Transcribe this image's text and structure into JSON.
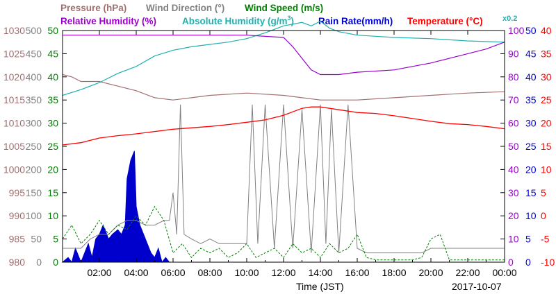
{
  "chart_data": {
    "type": "line",
    "date_label": "2017-10-07",
    "xlabel": "Time (JST)",
    "x_ticks": [
      "02:00",
      "04:00",
      "06:00",
      "08:00",
      "10:00",
      "12:00",
      "14:00",
      "16:00",
      "18:00",
      "20:00",
      "22:00",
      "00:00"
    ],
    "xlim_hours": [
      0,
      24
    ],
    "legend": {
      "pressure": "Pressure (hPa)",
      "wind_direction": "Wind Direction (°)",
      "wind_speed": "Wind Speed (m/s)",
      "relative_humidity": "Relative Humidity (%)",
      "absolute_humidity_prefix": "Absolute Humidity (g/m",
      "absolute_humidity_sup": "3",
      "absolute_humidity_suffix": ")",
      "rain_rate": "Rain Rate(mm/h)",
      "temperature": "Temperature (°C)",
      "multiplier": "x0.2"
    },
    "colors": {
      "pressure": "#a07070",
      "wind_direction": "#808080",
      "wind_speed": "#008000",
      "relative_humidity": "#9900cc",
      "absolute_humidity": "#20b0b0",
      "rain_rate": "#0000cc",
      "temperature": "#ff0000",
      "axis": "#000000"
    },
    "axes": {
      "pressure": {
        "ticks": [
          "980",
          "985",
          "990",
          "995",
          "1000",
          "1005",
          "1010",
          "1015",
          "1020",
          "1025",
          "1030"
        ],
        "ylim": [
          980,
          1030
        ]
      },
      "wind_direction": {
        "ticks": [
          "0",
          "50",
          "100",
          "150",
          "200",
          "250",
          "300",
          "350",
          "400",
          "450",
          "500"
        ],
        "ylim": [
          0,
          500
        ]
      },
      "wind_speed": {
        "ticks": [
          "0",
          "5",
          "10",
          "15",
          "20",
          "25",
          "30",
          "35",
          "40",
          "45",
          "50"
        ],
        "ylim": [
          0,
          50
        ]
      },
      "humidity": {
        "ticks": [
          "0",
          "10",
          "20",
          "30",
          "40",
          "50",
          "60",
          "70",
          "80",
          "90",
          "100"
        ],
        "ylim": [
          0,
          100
        ]
      },
      "rain_rate": {
        "ticks": [
          "0",
          "5",
          "10",
          "15",
          "20",
          "25",
          "30",
          "35",
          "40",
          "45",
          "50"
        ],
        "ylim": [
          0,
          50
        ]
      },
      "temperature": {
        "ticks": [
          "-10",
          "-5",
          "0",
          "5",
          "10",
          "15",
          "20",
          "25",
          "30",
          "35",
          "40"
        ],
        "ylim": [
          -10,
          40
        ]
      }
    },
    "series": {
      "pressure": {
        "x": [
          0,
          0.5,
          1,
          2,
          3,
          4,
          5,
          6,
          7,
          8,
          10,
          12,
          13,
          14,
          16,
          18,
          20,
          22,
          24
        ],
        "y": [
          1020.5,
          1020,
          1019,
          1019,
          1018,
          1017,
          1015.5,
          1015,
          1015.5,
          1016,
          1016.5,
          1016,
          1015.5,
          1015,
          1015,
          1015.5,
          1016,
          1016.5,
          1016.8
        ]
      },
      "relative_humidity": {
        "x": [
          0,
          2,
          4,
          6,
          8,
          9,
          10,
          11,
          12,
          12.5,
          13,
          13.5,
          14,
          14.5,
          15,
          16,
          18,
          20,
          22,
          23,
          24
        ],
        "y": [
          98,
          98,
          98,
          98,
          98,
          98,
          98,
          97.5,
          97,
          93,
          88,
          83,
          81,
          81,
          81,
          82,
          83,
          86,
          90,
          92,
          95
        ]
      },
      "absolute_humidity": {
        "x": [
          0,
          1,
          2,
          3,
          4,
          5,
          6,
          7,
          8,
          9,
          10,
          11,
          12,
          13,
          13.5,
          14,
          14.5,
          15,
          16,
          18,
          20,
          22,
          24
        ],
        "y": [
          14.4,
          14.9,
          15.5,
          16.3,
          16.9,
          17.8,
          18.3,
          18.6,
          18.8,
          19,
          19.3,
          19.8,
          20.4,
          20.7,
          20.4,
          20.8,
          20.2,
          19.9,
          19.6,
          19.4,
          19.3,
          19.1,
          19
        ]
      },
      "temperature": {
        "x": [
          0,
          1,
          2,
          3,
          4,
          5,
          6,
          7,
          8,
          9,
          10,
          11,
          12,
          13,
          13.5,
          14,
          14.5,
          15,
          16,
          17,
          18,
          19,
          20,
          21,
          22,
          23,
          24
        ],
        "y": [
          15.3,
          15.8,
          16.8,
          17.3,
          17.7,
          18.2,
          18.7,
          19,
          19.3,
          19.7,
          20.2,
          20.7,
          21.7,
          23.2,
          23.5,
          23.5,
          23.2,
          22.9,
          22.3,
          22.1,
          21.6,
          21,
          20.4,
          19.9,
          19.7,
          19.3,
          18.8
        ]
      },
      "rain_rate": {
        "x": [
          0,
          0.3,
          0.5,
          0.7,
          1,
          1.2,
          1.4,
          1.6,
          1.8,
          2,
          2.2,
          2.5,
          2.7,
          3,
          3.2,
          3.4,
          3.5,
          3.7,
          3.9,
          4,
          4.2,
          4.4,
          4.6,
          4.8,
          5,
          5.2,
          5.4,
          5.6,
          5.8,
          6
        ],
        "y": [
          0,
          1,
          0,
          3,
          0,
          2,
          4,
          1,
          5,
          6,
          8,
          5,
          6,
          7,
          6,
          8,
          18,
          22,
          24,
          12,
          8,
          6,
          4,
          2,
          1,
          3,
          0,
          1,
          0,
          0
        ]
      },
      "wind_direction": {
        "x": [
          0,
          0.5,
          1,
          1.5,
          2,
          2.5,
          3,
          3.5,
          4,
          4.5,
          5,
          5.5,
          5.8,
          6,
          6.2,
          6.4,
          6.6,
          7,
          7.5,
          8,
          8.5,
          9,
          9.5,
          10,
          10.3,
          10.6,
          11,
          11.5,
          12,
          12.5,
          13,
          13.5,
          14,
          14.3,
          14.6,
          15,
          15.5,
          16,
          16.5,
          17,
          18,
          19,
          19.5,
          20,
          21,
          22,
          23,
          24
        ],
        "y": [
          30,
          30,
          30,
          50,
          60,
          60,
          80,
          90,
          90,
          80,
          80,
          90,
          90,
          150,
          60,
          340,
          60,
          50,
          40,
          50,
          40,
          40,
          40,
          40,
          340,
          40,
          340,
          30,
          340,
          30,
          330,
          20,
          340,
          40,
          330,
          20,
          340,
          30,
          20,
          20,
          20,
          20,
          20,
          30,
          30,
          30,
          30,
          30
        ]
      },
      "wind_speed": {
        "x": [
          0,
          0.5,
          1,
          1.5,
          2,
          2.5,
          3,
          3.5,
          4,
          4.5,
          5,
          5.5,
          6,
          6.5,
          7,
          7.5,
          8,
          8.5,
          9,
          9.5,
          10,
          10.5,
          11,
          11.5,
          12,
          12.5,
          13,
          13.5,
          14,
          14.5,
          15,
          15.5,
          16,
          16.5,
          17,
          18,
          19,
          19.5,
          20,
          20.5,
          21,
          22,
          23,
          24
        ],
        "y": [
          5,
          8,
          4,
          6,
          9,
          6,
          8,
          7,
          10,
          8,
          12,
          9,
          2,
          4,
          1,
          3,
          2,
          3,
          1,
          2,
          4,
          1,
          2,
          3,
          1,
          4,
          2,
          3,
          1,
          4,
          2,
          3,
          6,
          1,
          0.5,
          0.5,
          0.5,
          1,
          5,
          6,
          0.5,
          0.5,
          0.5,
          0.5
        ]
      }
    }
  }
}
